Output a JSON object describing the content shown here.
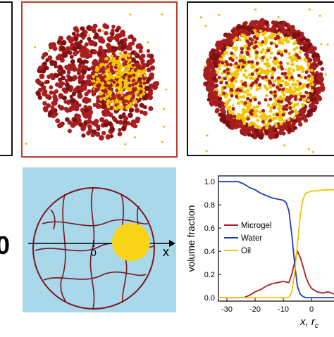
{
  "panel_labels": {
    "left_cut": "0"
  },
  "schematic": {
    "axis_label": "x",
    "origin_label": "0"
  },
  "colors": {
    "microgel": "#a81e1e",
    "water": "#1f3fb0",
    "oil": "#f2c500",
    "bg_water": "#a8d8ea"
  },
  "chart_data": {
    "type": "line",
    "xlabel": "x, r",
    "xlabel_sub": "c",
    "ylabel": "volume fraction",
    "xlim": [
      -33,
      8
    ],
    "ylim": [
      -0.03,
      1.05
    ],
    "xticks": [
      -30,
      -20,
      -10,
      0
    ],
    "yticks": [
      0.0,
      0.2,
      0.4,
      0.6,
      0.8,
      1.0
    ],
    "legend": "center-left",
    "series": [
      {
        "name": "Microgel",
        "color": "#a81e1e",
        "x": [
          -33,
          -24,
          -22,
          -20,
          -18,
          -16,
          -14,
          -12,
          -10,
          -8,
          -7,
          -6,
          -5,
          -4,
          -3,
          -2,
          -1,
          0,
          2,
          4,
          6,
          8
        ],
        "y": [
          0.0,
          0.0,
          0.02,
          0.05,
          0.07,
          0.1,
          0.12,
          0.13,
          0.14,
          0.13,
          0.2,
          0.3,
          0.4,
          0.35,
          0.27,
          0.18,
          0.12,
          0.08,
          0.05,
          0.04,
          0.05,
          0.03
        ]
      },
      {
        "name": "Water",
        "color": "#1f3fb0",
        "x": [
          -33,
          -26,
          -24,
          -22,
          -20,
          -18,
          -16,
          -14,
          -12,
          -10,
          -9,
          -8,
          -7,
          -6,
          -5,
          -4,
          -3,
          -2,
          0,
          4,
          8
        ],
        "y": [
          1.0,
          1.0,
          0.98,
          0.95,
          0.93,
          0.9,
          0.88,
          0.86,
          0.85,
          0.84,
          0.82,
          0.75,
          0.55,
          0.3,
          0.1,
          0.03,
          0.01,
          0.0,
          0.0,
          0.0,
          0.0
        ]
      },
      {
        "name": "Oil",
        "color": "#f2c500",
        "x": [
          -33,
          -8,
          -7,
          -6,
          -5,
          -4,
          -3,
          -2,
          -1,
          0,
          2,
          4,
          6,
          8
        ],
        "y": [
          0.0,
          0.0,
          0.05,
          0.2,
          0.45,
          0.7,
          0.85,
          0.9,
          0.91,
          0.92,
          0.92,
          0.93,
          0.93,
          0.93
        ]
      }
    ]
  }
}
